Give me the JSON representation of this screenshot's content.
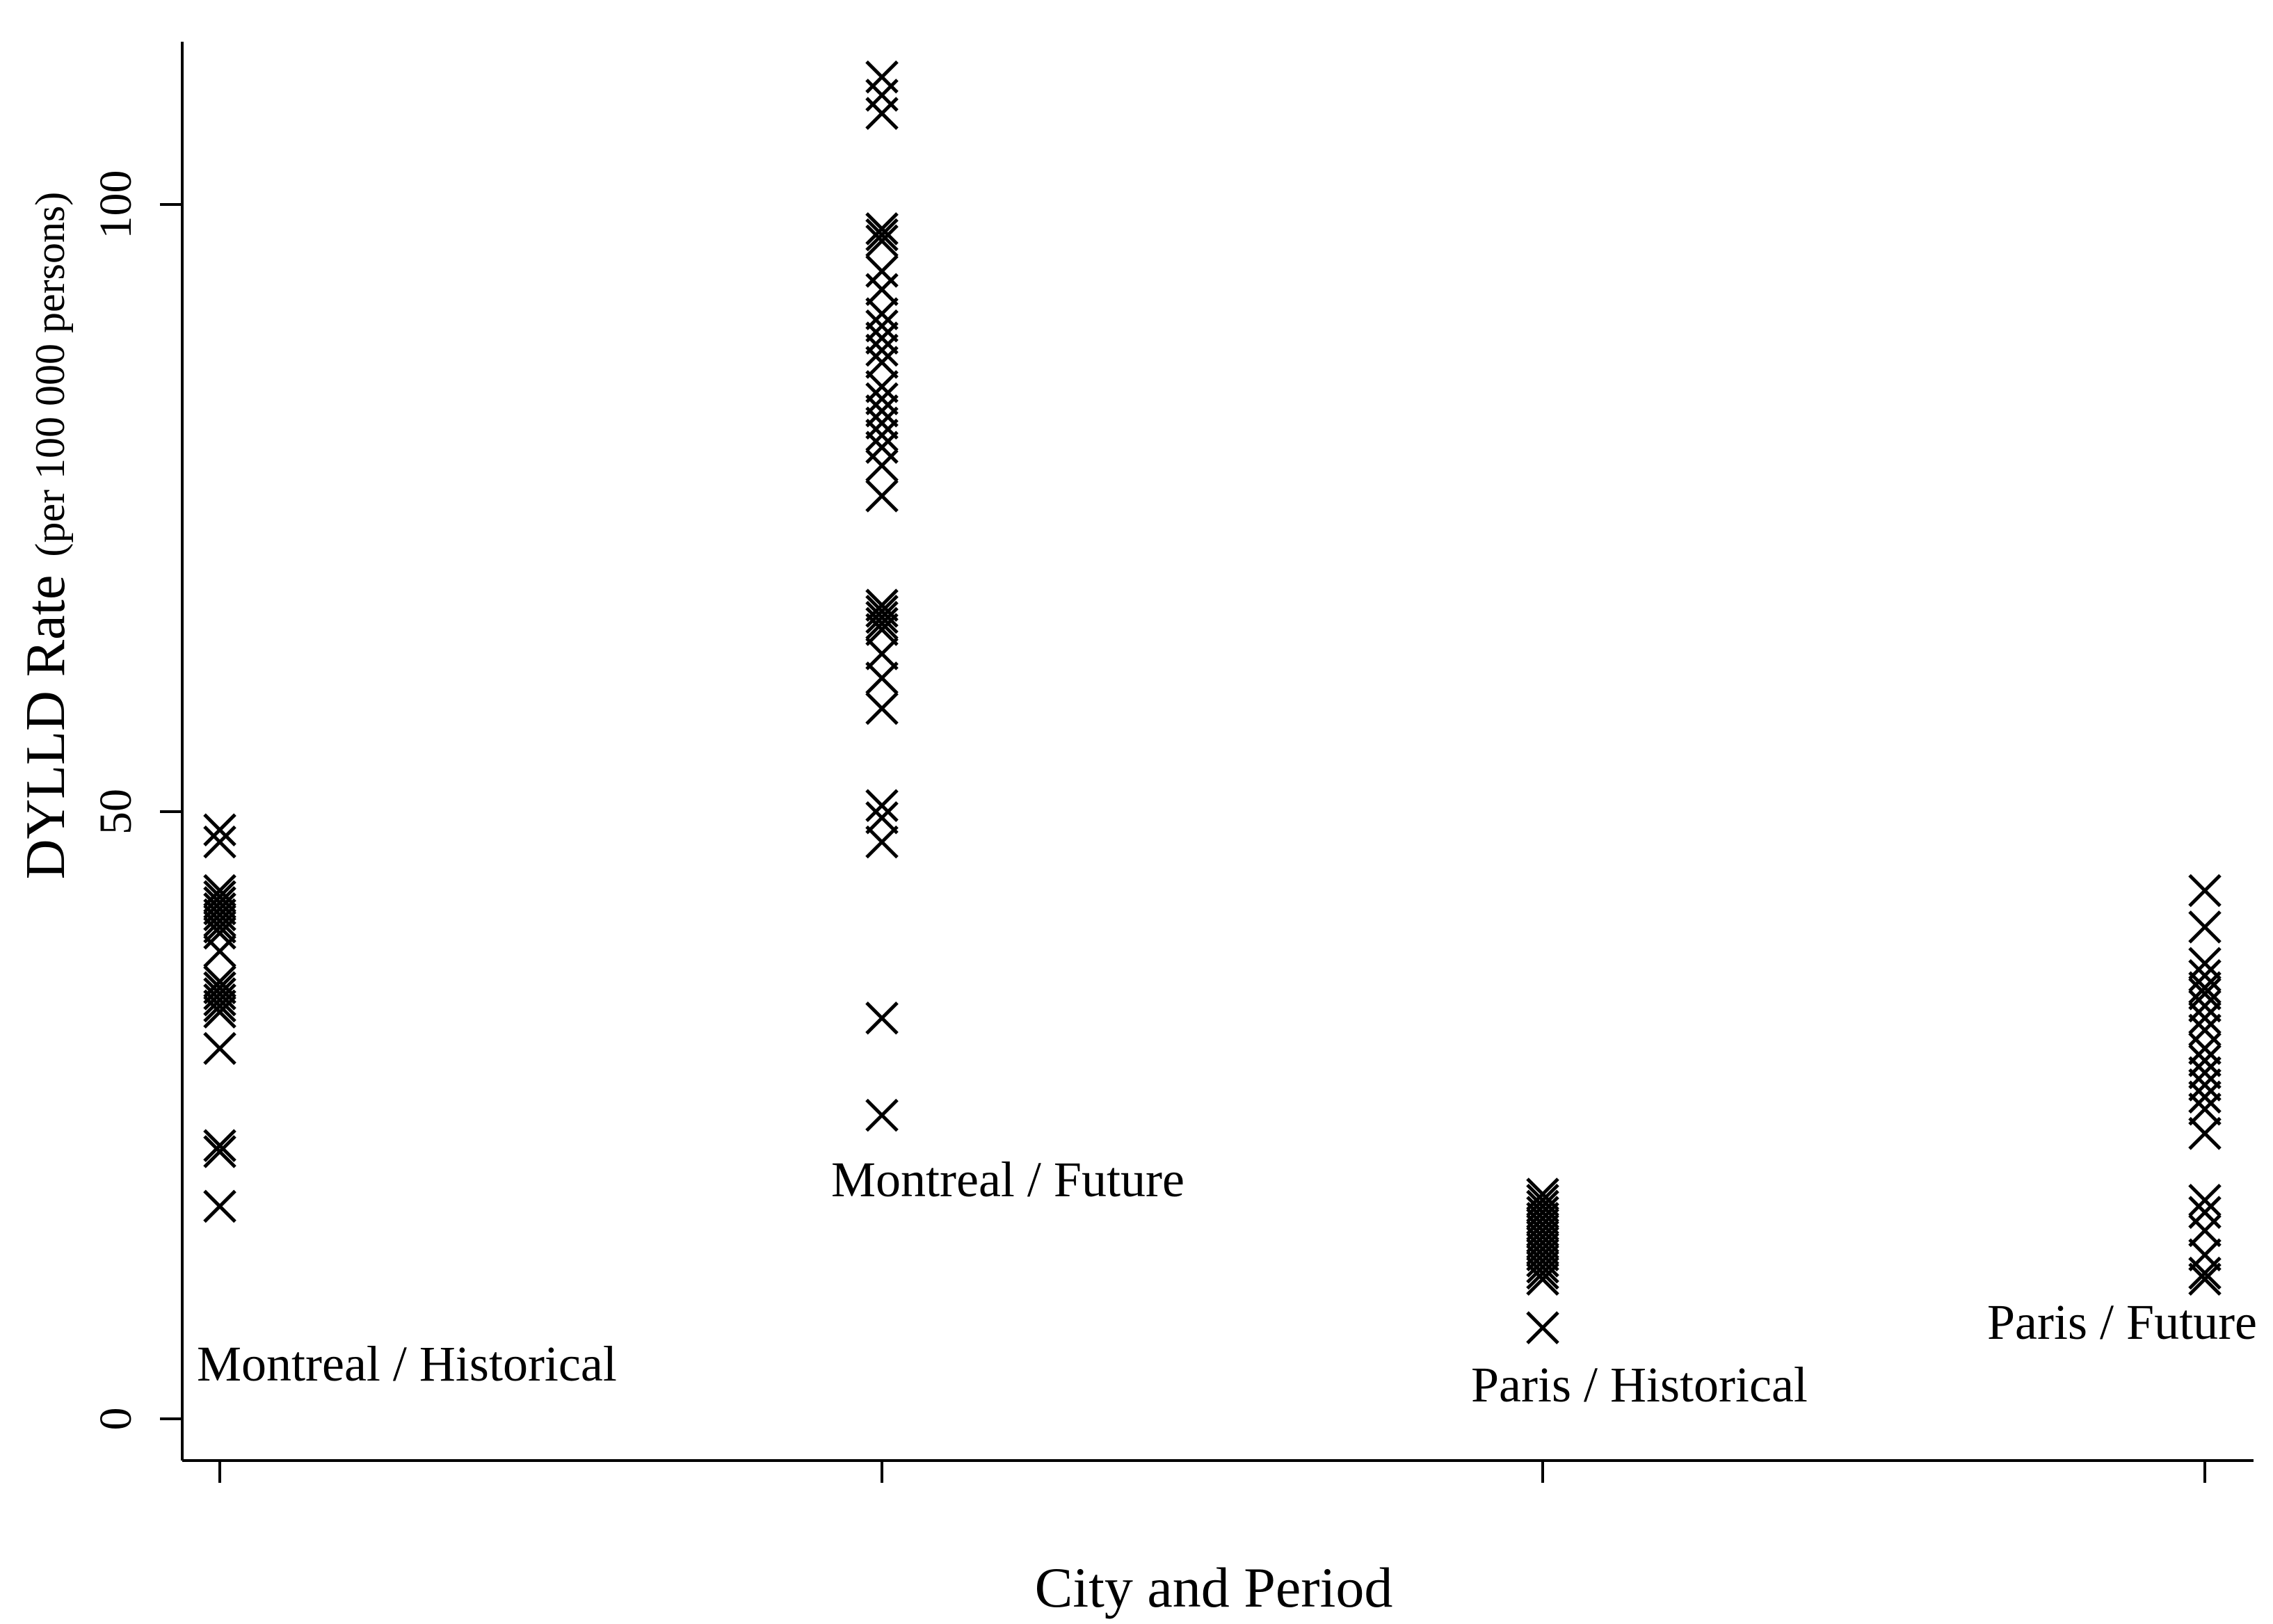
{
  "chart_data": {
    "type": "scatter",
    "xlabel": "City and  Period",
    "ylabel_main": "DYLLD Rate",
    "ylabel_unit": "(per 100 000 persons)",
    "ylim": [
      0,
      112
    ],
    "yticks": [
      0,
      50,
      100
    ],
    "categories": [
      "Montreal / Historical",
      "Montreal / Future",
      "Paris / Historical",
      "Paris / Future"
    ],
    "series": [
      {
        "values": [
          48.5,
          47.5,
          43.5,
          43.0,
          42.5,
          42.0,
          41.5,
          41.0,
          40.5,
          40.0,
          38.5,
          36.0,
          35.5,
          35.0,
          34.5,
          34.0,
          33.5,
          30.5,
          22.5,
          22.0,
          17.5
        ]
      },
      {
        "values": [
          110.5,
          109.0,
          107.5,
          98.0,
          97.5,
          97.0,
          94.5,
          93.0,
          91.0,
          90.0,
          89.0,
          88.0,
          87.0,
          85.0,
          84.0,
          83.0,
          82.0,
          81.0,
          80.0,
          78.5,
          76.0,
          67.0,
          66.5,
          66.0,
          65.5,
          65.0,
          63.0,
          61.0,
          58.5,
          50.5,
          49.5,
          47.5,
          33.0,
          25.0
        ]
      },
      {
        "values": [
          18.5,
          18.0,
          17.5,
          17.0,
          16.5,
          16.0,
          15.5,
          15.0,
          14.5,
          14.0,
          13.5,
          13.0,
          12.5,
          12.0,
          11.5,
          7.5
        ]
      },
      {
        "values": [
          43.5,
          40.5,
          37.5,
          36.5,
          35.5,
          35.0,
          34.0,
          33.0,
          32.0,
          30.5,
          29.5,
          28.5,
          27.5,
          26.5,
          25.5,
          23.5,
          18.0,
          17.0,
          15.5,
          13.5,
          12.0,
          11.5
        ]
      }
    ]
  }
}
